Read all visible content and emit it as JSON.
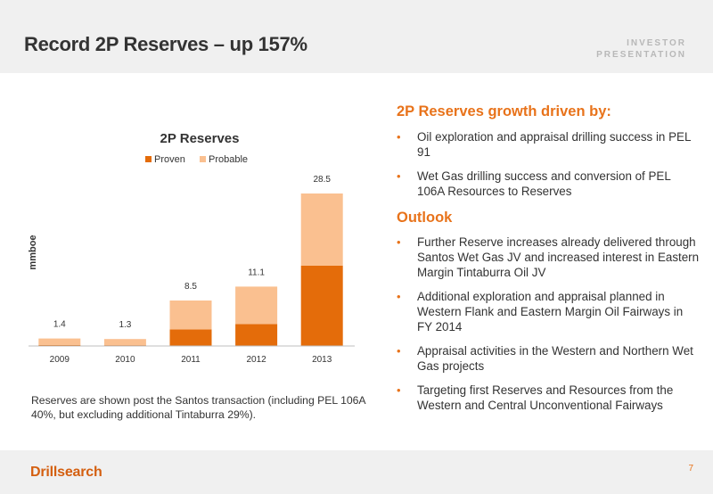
{
  "header": {
    "title": "Record 2P Reserves – up 157%",
    "tag_line1": "INVESTOR",
    "tag_line2": "PRESENTATION"
  },
  "chart_data": {
    "type": "bar",
    "stacked": true,
    "title": "2P Reserves",
    "ylabel": "mmboe",
    "xlabel": "",
    "categories": [
      "2009",
      "2010",
      "2011",
      "2012",
      "2013"
    ],
    "series": [
      {
        "name": "Proven",
        "color": "#e46c0a",
        "values": [
          0.2,
          0.15,
          3.1,
          4.1,
          15.0
        ]
      },
      {
        "name": "Probable",
        "color": "#fac090",
        "values": [
          1.2,
          1.15,
          5.4,
          7.0,
          13.5
        ]
      }
    ],
    "totals": [
      "1.4",
      "1.3",
      "8.5",
      "11.1",
      "28.5"
    ],
    "ylim": [
      0,
      30
    ],
    "legend_position": "top",
    "grid": false
  },
  "footnote": "Reserves are shown post the Santos transaction (including PEL 106A 40%, but excluding additional Tintaburra 29%).",
  "right": {
    "heading1": "2P Reserves growth driven by:",
    "bullets1": [
      "Oil exploration and appraisal drilling success in PEL 91",
      "Wet Gas drilling success and conversion of PEL 106A Resources to Reserves"
    ],
    "heading2": "Outlook",
    "bullets2": [
      "Further Reserve increases already delivered through Santos Wet Gas JV and increased interest in Eastern Margin Tintaburra Oil JV",
      "Additional exploration and appraisal planned in Western Flank and Eastern Margin Oil Fairways in FY 2014",
      "Appraisal activities in the Western and Northern Wet Gas projects",
      "Targeting first Reserves and Resources from the Western and Central Unconventional Fairways"
    ]
  },
  "footer": {
    "logo": "Drillsearch",
    "page": "7"
  },
  "colors": {
    "accent": "#e8731b",
    "proven": "#e46c0a",
    "probable": "#fac090"
  }
}
